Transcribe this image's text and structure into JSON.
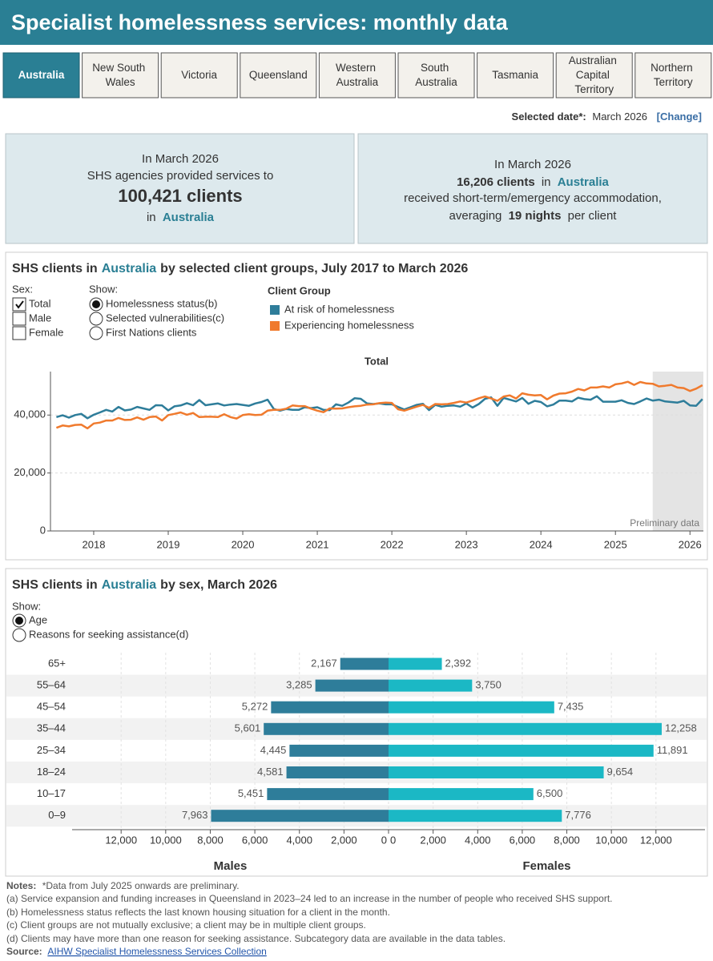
{
  "header": {
    "title": "Specialist homelessness services: monthly data"
  },
  "tabs": [
    "Australia",
    "New South Wales",
    "Victoria",
    "Queensland",
    "Western Australia",
    "South Australia",
    "Tasmania",
    "Australian Capital Territory",
    "Northern Territory"
  ],
  "selected_date": {
    "label": "Selected date*:",
    "value": "March 2026",
    "action": "[Change]"
  },
  "kpi_services": {
    "period": "In March 2026",
    "lead": "SHS agencies provided services to",
    "figure": "100,421 clients",
    "prep": "in",
    "place": "Australia"
  },
  "kpi_accommodation": {
    "period": "In March 2026",
    "figure": "16,206 clients",
    "prep": "in",
    "place": "Australia",
    "lead": "received short-term/emergency accommodation,",
    "pre": "averaging",
    "nights": "19 nights",
    "post": "per client"
  },
  "chart_data": [
    {
      "type": "line",
      "title": [
        "SHS clients in",
        "Australia",
        "by selected client groups, July 2017 to March 2026"
      ],
      "filters": {
        "sex_label": "Sex:",
        "sex_options": [
          "Total",
          "Male",
          "Female"
        ],
        "show_label": "Show:",
        "show_options": [
          "Homelessness status(b)",
          "Selected vulnerabilities(c)",
          "First Nations clients"
        ]
      },
      "legend_title": "Client Group",
      "subtitle": "Total",
      "annotation": "Preliminary data",
      "shaded_from": 2025.5,
      "x": [
        2017.5,
        2017.583,
        2017.667,
        2017.75,
        2017.833,
        2017.917,
        2018,
        2018.083,
        2018.167,
        2018.25,
        2018.333,
        2018.417,
        2018.5,
        2018.583,
        2018.667,
        2018.75,
        2018.833,
        2018.917,
        2019,
        2019.083,
        2019.167,
        2019.25,
        2019.333,
        2019.417,
        2019.5,
        2019.583,
        2019.667,
        2019.75,
        2019.833,
        2019.917,
        2020,
        2020.083,
        2020.167,
        2020.25,
        2020.333,
        2020.417,
        2020.5,
        2020.583,
        2020.667,
        2020.75,
        2020.833,
        2020.917,
        2021,
        2021.083,
        2021.167,
        2021.25,
        2021.333,
        2021.417,
        2021.5,
        2021.583,
        2021.667,
        2021.75,
        2021.833,
        2021.917,
        2022,
        2022.083,
        2022.167,
        2022.25,
        2022.333,
        2022.417,
        2022.5,
        2022.583,
        2022.667,
        2022.75,
        2022.833,
        2022.917,
        2023,
        2023.083,
        2023.167,
        2023.25,
        2023.333,
        2023.417,
        2023.5,
        2023.583,
        2023.667,
        2023.75,
        2023.833,
        2023.917,
        2024,
        2024.083,
        2024.167,
        2024.25,
        2024.333,
        2024.417,
        2024.5,
        2024.583,
        2024.667,
        2024.75,
        2024.833,
        2024.917,
        2025,
        2025.083,
        2025.167,
        2025.25,
        2025.333,
        2025.417,
        2025.5,
        2025.583,
        2025.667,
        2025.75,
        2025.833,
        2025.917,
        2026,
        2026.083,
        2026.167
      ],
      "series": [
        {
          "name": "At risk of homelessness",
          "color": "#2e7d9a",
          "values": [
            39300,
            39900,
            39100,
            40000,
            40400,
            38900,
            40100,
            40900,
            41800,
            41200,
            42800,
            41600,
            41900,
            42800,
            42300,
            41800,
            43400,
            43300,
            41600,
            43000,
            43300,
            44100,
            43400,
            45200,
            43400,
            43700,
            44000,
            43300,
            43600,
            43800,
            43500,
            43200,
            44000,
            44500,
            45300,
            42100,
            41500,
            42100,
            41800,
            41800,
            42700,
            42400,
            42700,
            41800,
            41700,
            43700,
            43200,
            44300,
            45800,
            45600,
            44000,
            43800,
            44000,
            43700,
            43700,
            42800,
            41900,
            42700,
            43500,
            43900,
            41700,
            43500,
            42900,
            43200,
            43300,
            42900,
            44000,
            42600,
            43800,
            45600,
            46100,
            43200,
            45900,
            45300,
            44700,
            45900,
            43900,
            44900,
            44500,
            43000,
            43600,
            45000,
            45000,
            44700,
            46000,
            45500,
            45300,
            46500,
            44600,
            44600,
            44600,
            45100,
            44200,
            43800,
            44700,
            45700,
            45000,
            45300,
            44700,
            44500,
            44300,
            44900,
            43300,
            43200,
            45500
          ]
        },
        {
          "name": "Experiencing homelessness",
          "color": "#f07a2d",
          "values": [
            35600,
            36400,
            36100,
            36600,
            36700,
            35400,
            37100,
            37400,
            38100,
            38100,
            39000,
            38300,
            38400,
            39200,
            38400,
            39300,
            39500,
            38100,
            40000,
            40400,
            40900,
            40100,
            40700,
            39300,
            39400,
            39400,
            39300,
            40300,
            39300,
            38800,
            40000,
            40300,
            40000,
            40100,
            41500,
            41800,
            41800,
            42200,
            43300,
            43100,
            43100,
            42200,
            41500,
            41000,
            42300,
            42200,
            42300,
            42700,
            43000,
            43200,
            43600,
            43700,
            44100,
            44300,
            44200,
            42000,
            41500,
            42200,
            42900,
            43500,
            42500,
            43800,
            43700,
            43800,
            44200,
            44700,
            44300,
            45000,
            45800,
            46400,
            45700,
            44900,
            46400,
            46800,
            45700,
            47500,
            47000,
            46800,
            46900,
            45400,
            46700,
            47400,
            47500,
            48100,
            49000,
            48500,
            49500,
            49500,
            49900,
            49500,
            50600,
            50900,
            51500,
            50400,
            51400,
            50900,
            50800,
            49900,
            50100,
            50400,
            49500,
            49300,
            48300,
            49100,
            50300
          ]
        }
      ],
      "xlim": [
        2017.42,
        2026.18
      ],
      "xticks": [
        2018,
        2019,
        2020,
        2021,
        2022,
        2023,
        2024,
        2025,
        2026
      ],
      "ylim": [
        0,
        55000
      ],
      "yticks": [
        0,
        {
          "value": 20000,
          "label": "20,000"
        },
        {
          "value": 40000,
          "label": "40,000"
        }
      ],
      "grid": true
    },
    {
      "type": "bar",
      "title": [
        "SHS clients in",
        "Australia",
        "by sex, March 2026"
      ],
      "filters": {
        "show_label": "Show:",
        "show_options": [
          "Age",
          "Reasons for seeking assistance(d)"
        ]
      },
      "categories": [
        "65+",
        "55–64",
        "45–54",
        "35–44",
        "25–34",
        "18–24",
        "10–17",
        "0–9"
      ],
      "series": [
        {
          "name": "Males",
          "color": "#2e7d9a",
          "values": [
            2167,
            3285,
            5272,
            5601,
            4445,
            4581,
            5451,
            7963
          ],
          "value_labels": [
            "2,167",
            "3,285",
            "5,272",
            "5,601",
            "4,445",
            "4,581",
            "5,451",
            "7,963"
          ]
        },
        {
          "name": "Females",
          "color": "#1bb8c5",
          "values": [
            2392,
            3750,
            7435,
            12258,
            11891,
            9654,
            6500,
            7776
          ],
          "value_labels": [
            "2,392",
            "3,750",
            "7,435",
            "12,258",
            "11,891",
            "9,654",
            "6,500",
            "7,776"
          ]
        }
      ],
      "xlim": [
        0,
        14200
      ],
      "xticks": [
        0,
        {
          "value": 2000,
          "label": "2,000"
        },
        {
          "value": 4000,
          "label": "4,000"
        },
        {
          "value": 6000,
          "label": "6,000"
        },
        {
          "value": 8000,
          "label": "8,000"
        },
        {
          "value": 10000,
          "label": "10,000"
        },
        {
          "value": 12000,
          "label": "12,000"
        }
      ],
      "grid": true
    }
  ],
  "notes": {
    "label": "Notes:",
    "items": [
      "*Data from July 2025 onwards are preliminary.",
      "(a) Service expansion and funding increases in Queensland in 2023–24 led to an increase in the number of people who received SHS support.",
      "(b) Homelessness status reflects the last known housing situation for a client in the month.",
      "(c) Client groups are not mutually exclusive; a client may be in multiple client groups.",
      "(d) Clients may have more than one reason for seeking assistance. Subcategory data are available in the data tables."
    ],
    "source_label": "Source:",
    "source_link": "AIHW Specialist Homelessness Services Collection"
  }
}
